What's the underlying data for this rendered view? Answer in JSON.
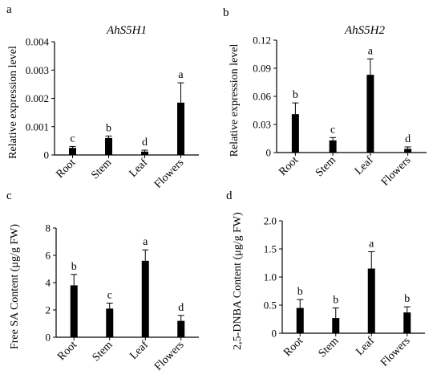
{
  "panels": [
    {
      "letter": "a",
      "chart_data": {
        "type": "bar",
        "title": "AhS5H1",
        "xlabel": "",
        "ylabel": "Relative expression level",
        "categories": [
          "Root",
          "Stem",
          "Leaf",
          "Flowers"
        ],
        "values": [
          0.00025,
          0.0006,
          0.00012,
          0.00185
        ],
        "errors": [
          5e-05,
          7e-05,
          5e-05,
          0.0007
        ],
        "significance": [
          "c",
          "b",
          "d",
          "a"
        ],
        "yticks": [
          "0",
          "0.001",
          "0.002",
          "0.003",
          "0.004"
        ],
        "ylim": [
          0,
          0.004
        ],
        "bar_color": "#000000",
        "grid": false,
        "legend": "none"
      }
    },
    {
      "letter": "b",
      "chart_data": {
        "type": "bar",
        "title": "AhS5H2",
        "xlabel": "",
        "ylabel": "Relative expression level",
        "categories": [
          "Root",
          "Stem",
          "Leaf",
          "Flowers"
        ],
        "values": [
          0.041,
          0.013,
          0.083,
          0.004
        ],
        "errors": [
          0.012,
          0.003,
          0.017,
          0.002
        ],
        "significance": [
          "b",
          "c",
          "a",
          "d"
        ],
        "yticks": [
          "0",
          "0.03",
          "0.06",
          "0.09",
          "0.12"
        ],
        "ylim": [
          0,
          0.12
        ],
        "bar_color": "#000000",
        "grid": false,
        "legend": "none"
      }
    },
    {
      "letter": "c",
      "chart_data": {
        "type": "bar",
        "title": "",
        "xlabel": "",
        "ylabel": "Free SA Content (μg/g FW)",
        "categories": [
          "Root",
          "Stem",
          "Leaf",
          "Flowers"
        ],
        "values": [
          3.8,
          2.1,
          5.6,
          1.2
        ],
        "errors": [
          0.8,
          0.4,
          0.8,
          0.4
        ],
        "significance": [
          "b",
          "c",
          "a",
          "d"
        ],
        "yticks": [
          "0",
          "2",
          "4",
          "6",
          "8"
        ],
        "ylim": [
          0,
          8
        ],
        "bar_color": "#000000",
        "grid": false,
        "legend": "none"
      }
    },
    {
      "letter": "d",
      "chart_data": {
        "type": "bar",
        "title": "",
        "xlabel": "",
        "ylabel": "2,5-DNBA Content (μg/g FW)",
        "categories": [
          "Root",
          "Stem",
          "Leaf",
          "Flowers"
        ],
        "values": [
          0.45,
          0.27,
          1.15,
          0.37
        ],
        "errors": [
          0.15,
          0.18,
          0.3,
          0.1
        ],
        "significance": [
          "b",
          "b",
          "a",
          "b"
        ],
        "yticks": [
          "0",
          "0.5",
          "1.0",
          "1.5",
          "2.0"
        ],
        "ylim": [
          0,
          2.0
        ],
        "bar_color": "#000000",
        "grid": false,
        "legend": "none"
      }
    }
  ]
}
